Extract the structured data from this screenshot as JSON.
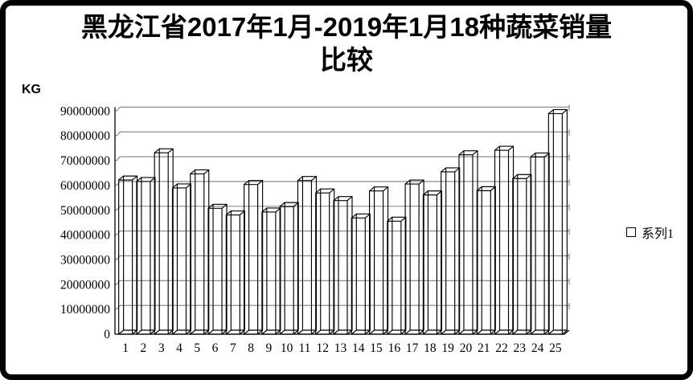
{
  "title": {
    "line1": "黑龙江省2017年1月-2019年1月18种蔬菜销量",
    "line2": "比较"
  },
  "y_axis": {
    "unit_label": "KG",
    "tick_labels_bottom_up": [
      "0",
      "10000000",
      "20000000",
      "30000000",
      "40000000",
      "50000000",
      "60000000",
      "70000000",
      "80000000",
      "90000000"
    ]
  },
  "legend": {
    "items": [
      {
        "label": "系列1",
        "swatch": "white-square"
      }
    ]
  },
  "colors": {
    "background": "#ffffff",
    "frame_border": "#000000",
    "gridline": "#808080",
    "axis": "#000000",
    "bar_stroke": "#000000",
    "bar_fill": "none",
    "text": "#000000"
  },
  "chart_data": {
    "type": "bar",
    "style": "3d-wireframe-columns",
    "title": "黑龙江省2017年1月-2019年1月18种蔬菜销量比较",
    "xlabel": "",
    "ylabel": "KG",
    "ylim": [
      0,
      90000000
    ],
    "ytick_interval": 10000000,
    "grid": true,
    "legend_position": "right",
    "categories": [
      "1",
      "2",
      "3",
      "4",
      "5",
      "6",
      "7",
      "8",
      "9",
      "10",
      "11",
      "12",
      "13",
      "14",
      "15",
      "16",
      "17",
      "18",
      "19",
      "20",
      "21",
      "22",
      "23",
      "24",
      "25"
    ],
    "series": [
      {
        "name": "系列1",
        "values": [
          62200000,
          61600000,
          73200000,
          59000000,
          64700000,
          50800000,
          48100000,
          60400000,
          49300000,
          51500000,
          62000000,
          57000000,
          53900000,
          46900000,
          57800000,
          45600000,
          60600000,
          56200000,
          65500000,
          72400000,
          57900000,
          74200000,
          62800000,
          71500000,
          89000000
        ]
      }
    ]
  }
}
